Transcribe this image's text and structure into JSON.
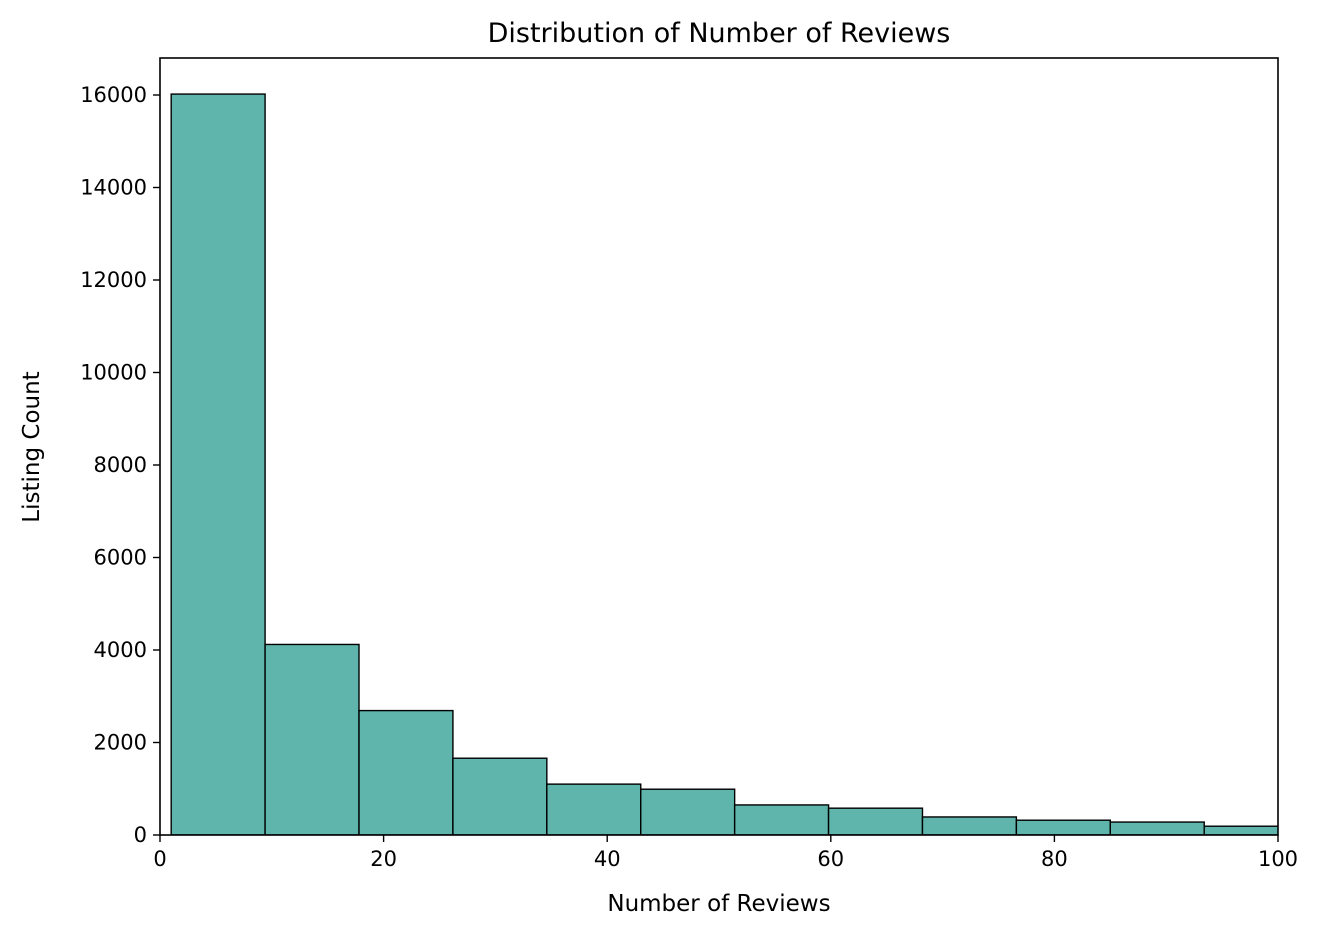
{
  "chart_data": {
    "type": "bar",
    "title": "Distribution of Number of Reviews",
    "xlabel": "Number of Reviews",
    "ylabel": "Listing Count",
    "xlim": [
      0,
      100
    ],
    "ylim": [
      0,
      16800
    ],
    "grid": false,
    "bar_color": "#5fb5ac",
    "edge_color": "#000000",
    "x_ticks": [
      {
        "value": 0,
        "label": "0"
      },
      {
        "value": 20,
        "label": "20"
      },
      {
        "value": 40,
        "label": "40"
      },
      {
        "value": 60,
        "label": "60"
      },
      {
        "value": 80,
        "label": "80"
      },
      {
        "value": 100,
        "label": "100"
      }
    ],
    "y_ticks": [
      {
        "value": 0,
        "label": "0"
      },
      {
        "value": 2000,
        "label": "2000"
      },
      {
        "value": 4000,
        "label": "4000"
      },
      {
        "value": 6000,
        "label": "6000"
      },
      {
        "value": 8000,
        "label": "8000"
      },
      {
        "value": 10000,
        "label": "10000"
      },
      {
        "value": 12000,
        "label": "12000"
      },
      {
        "value": 14000,
        "label": "14000"
      },
      {
        "value": 16000,
        "label": "16000"
      }
    ],
    "bins": [
      {
        "x0": 1.0,
        "x1": 9.4,
        "count": 16020
      },
      {
        "x0": 9.4,
        "x1": 17.8,
        "count": 4120
      },
      {
        "x0": 17.8,
        "x1": 26.2,
        "count": 2690
      },
      {
        "x0": 26.2,
        "x1": 34.6,
        "count": 1660
      },
      {
        "x0": 34.6,
        "x1": 43.0,
        "count": 1100
      },
      {
        "x0": 43.0,
        "x1": 51.4,
        "count": 990
      },
      {
        "x0": 51.4,
        "x1": 59.8,
        "count": 650
      },
      {
        "x0": 59.8,
        "x1": 68.2,
        "count": 580
      },
      {
        "x0": 68.2,
        "x1": 76.6,
        "count": 390
      },
      {
        "x0": 76.6,
        "x1": 85.0,
        "count": 320
      },
      {
        "x0": 85.0,
        "x1": 93.4,
        "count": 280
      },
      {
        "x0": 93.4,
        "x1": 101.8,
        "count": 190
      }
    ]
  }
}
